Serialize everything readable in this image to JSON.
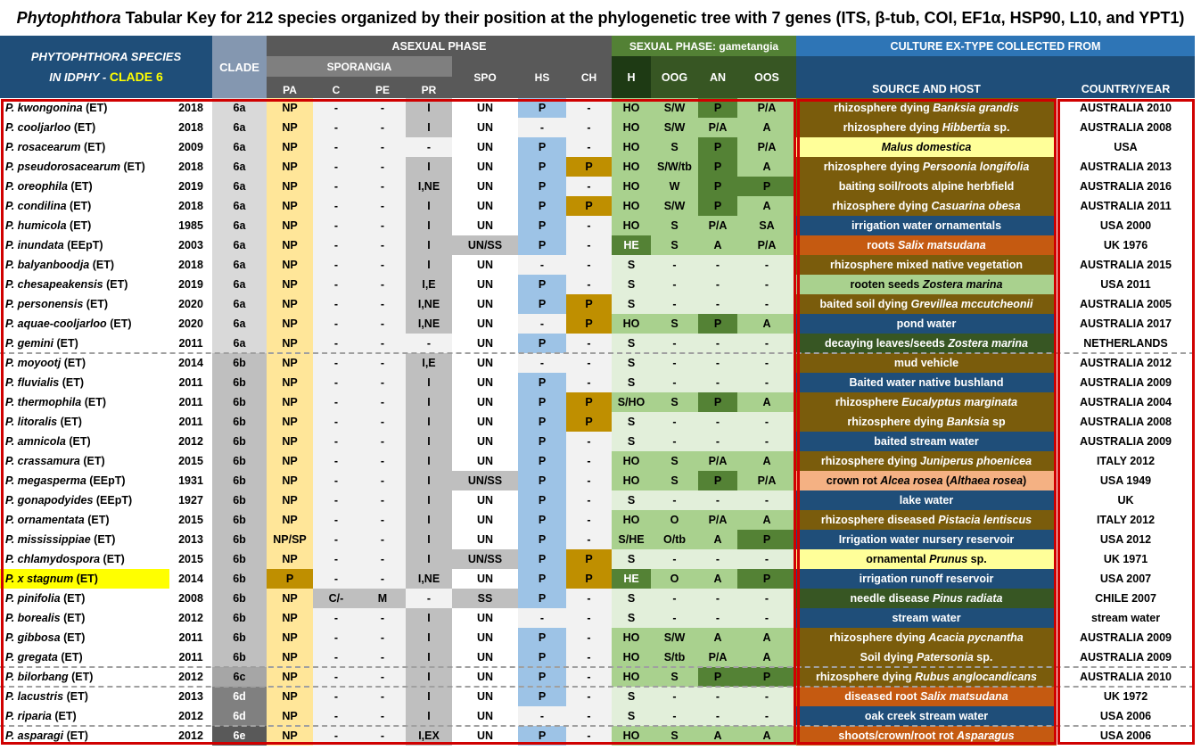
{
  "title": {
    "genus": "Phytophthora",
    "rest": " Tabular Key for 212 species organized by their position at the phylogenetic tree with 7 genes (ITS, β-tub, COI, EF1α, HSP90, L10, and YPT1)"
  },
  "header": {
    "species_line1": "PHYTOPHTHORA SPECIES",
    "species_line2_prefix": "IN IDPHY - ",
    "species_line2_clade": "CLADE 6",
    "clade": "CLADE",
    "asexual": "ASEXUAL PHASE",
    "sporangia": "SPORANGIA",
    "sexual": "SEXUAL PHASE: gametangia",
    "culture": "CULTURE EX-TYPE COLLECTED FROM",
    "cols": {
      "pa": "PA",
      "c": "C",
      "pe": "PE",
      "pr": "PR",
      "spo": "SPO",
      "hs": "HS",
      "ch": "CH",
      "h": "H",
      "oog": "OOG",
      "an": "AN",
      "oos": "OOS",
      "source": "SOURCE AND HOST",
      "country": "COUNTRY/YEAR"
    }
  },
  "colors": {
    "ho_brown": "#7a5c0c",
    "blue_dark": "#1f4e79",
    "orange": "#c55a11",
    "green_dark": "#375623",
    "yellow_pale": "#ffff99",
    "salmon": "#f4b183",
    "green_light": "#a9d18e",
    "yellow_hl": "#ffff00",
    "red_frame": "#d00000"
  },
  "rows": [
    {
      "sp": "P. kwongonina",
      "t": "(ET)",
      "y": "2018",
      "cl": "6a",
      "pa": "NP",
      "c": "-",
      "pe": "-",
      "pr": "I",
      "spo": "UN",
      "hs": "P",
      "ch": "-",
      "h": "HO",
      "oog": "S/W",
      "an": "P",
      "oos": "P/A",
      "src": [
        "rhizosphere dying ",
        "Banksia grandis"
      ],
      "srcc": "brown",
      "co": "AUSTRALIA 2010"
    },
    {
      "sp": "P. cooljarloo",
      "t": "(ET)",
      "y": "2018",
      "cl": "6a",
      "pa": "NP",
      "c": "-",
      "pe": "-",
      "pr": "I",
      "spo": "UN",
      "hs": "-",
      "ch": "-",
      "h": "HO",
      "oog": "S/W",
      "an": "P/A",
      "oos": "A",
      "src": [
        "rhizosphere dying ",
        "Hibbertia",
        " sp."
      ],
      "srcc": "brown",
      "co": "AUSTRALIA 2008"
    },
    {
      "sp": "P. rosacearum",
      "t": "(ET)",
      "y": "2009",
      "cl": "6a",
      "pa": "NP",
      "c": "-",
      "pe": "-",
      "pr": "-",
      "spo": "UN",
      "hs": "P",
      "ch": "-",
      "h": "HO",
      "oog": "S",
      "an": "P",
      "oos": "P/A",
      "src": [
        "",
        "Malus domestica"
      ],
      "srcc": "yellow",
      "co": "USA"
    },
    {
      "sp": "P. pseudorosacearum",
      "t": "(ET)",
      "y": "2018",
      "cl": "6a",
      "pa": "NP",
      "c": "-",
      "pe": "-",
      "pr": "I",
      "spo": "UN",
      "hs": "P",
      "ch": "P",
      "h": "HO",
      "oog": "S/W/tb",
      "an": "P",
      "oos": "A",
      "src": [
        "rhizosphere dying ",
        "Persoonia longifolia"
      ],
      "srcc": "brown",
      "co": "AUSTRALIA 2013"
    },
    {
      "sp": "P. oreophila",
      "t": "(ET)",
      "y": "2019",
      "cl": "6a",
      "pa": "NP",
      "c": "-",
      "pe": "-",
      "pr": "I,NE",
      "spo": "UN",
      "hs": "P",
      "ch": "-",
      "h": "HO",
      "oog": "W",
      "an": "P",
      "oos": "P",
      "src": [
        "baiting soil/roots alpine herbfield"
      ],
      "srcc": "brown",
      "co": "AUSTRALIA 2016"
    },
    {
      "sp": "P. condilina",
      "t": "(ET)",
      "y": "2018",
      "cl": "6a",
      "pa": "NP",
      "c": "-",
      "pe": "-",
      "pr": "I",
      "spo": "UN",
      "hs": "P",
      "ch": "P",
      "h": "HO",
      "oog": "S/W",
      "an": "P",
      "oos": "A",
      "src": [
        "rhizosphere dying ",
        "Casuarina obesa"
      ],
      "srcc": "brown",
      "co": "AUSTRALIA 2011"
    },
    {
      "sp": "P. humicola",
      "t": "(ET)",
      "y": "1985",
      "cl": "6a",
      "pa": "NP",
      "c": "-",
      "pe": "-",
      "pr": "I",
      "spo": "UN",
      "hs": "P",
      "ch": "-",
      "h": "HO",
      "oog": "S",
      "an": "P/A",
      "oos": "SA",
      "src": [
        "irrigation water ornamentals"
      ],
      "srcc": "blue",
      "co": "USA 2000"
    },
    {
      "sp": "P. inundata",
      "t": "(EEpT)",
      "y": "2003",
      "cl": "6a",
      "pa": "NP",
      "c": "-",
      "pe": "-",
      "pr": "I",
      "spo": "UN/SS",
      "hs": "P",
      "ch": "-",
      "h": "HE",
      "oog": "S",
      "an": "A",
      "oos": "P/A",
      "src": [
        "roots ",
        "Salix matsudana"
      ],
      "srcc": "orange",
      "co": "UK 1976"
    },
    {
      "sp": "P. balyanboodja",
      "t": "(ET)",
      "y": "2018",
      "cl": "6a",
      "pa": "NP",
      "c": "-",
      "pe": "-",
      "pr": "I",
      "spo": "UN",
      "hs": "-",
      "ch": "-",
      "h": "S",
      "oog": "-",
      "an": "-",
      "oos": "-",
      "src": [
        "rhizosphere mixed native vegetation"
      ],
      "srcc": "brown",
      "co": "AUSTRALIA 2015"
    },
    {
      "sp": "P. chesapeakensis",
      "t": "(ET)",
      "y": "2019",
      "cl": "6a",
      "pa": "NP",
      "c": "-",
      "pe": "-",
      "pr": "I,E",
      "spo": "UN",
      "hs": "P",
      "ch": "-",
      "h": "S",
      "oog": "-",
      "an": "-",
      "oos": "-",
      "src": [
        "rooten seeds ",
        "Zostera marina"
      ],
      "srcc": "lgreen",
      "co": "USA 2011"
    },
    {
      "sp": "P. personensis",
      "t": "(ET)",
      "y": "2020",
      "cl": "6a",
      "pa": "NP",
      "c": "-",
      "pe": "-",
      "pr": "I,NE",
      "spo": "UN",
      "hs": "P",
      "ch": "P",
      "h": "S",
      "oog": "-",
      "an": "-",
      "oos": "-",
      "src": [
        "baited soil dying ",
        "Grevillea mccutcheonii"
      ],
      "srcc": "brown",
      "co": "AUSTRALIA 2005"
    },
    {
      "sp": "P. aquae-cooljarloo",
      "t": "(ET)",
      "y": "2020",
      "cl": "6a",
      "pa": "NP",
      "c": "-",
      "pe": "-",
      "pr": "I,NE",
      "spo": "UN",
      "hs": "-",
      "ch": "P",
      "h": "HO",
      "oog": "S",
      "an": "P",
      "oos": "A",
      "src": [
        "pond water"
      ],
      "srcc": "blue",
      "co": "AUSTRALIA 2017"
    },
    {
      "sp": "P. gemini",
      "t": "(ET)",
      "y": "2011",
      "cl": "6a",
      "pa": "NP",
      "c": "-",
      "pe": "-",
      "pr": "-",
      "spo": "UN",
      "hs": "P",
      "ch": "-",
      "h": "S",
      "oog": "-",
      "an": "-",
      "oos": "-",
      "src": [
        "decaying leaves/seeds ",
        "Zostera marina"
      ],
      "srcc": "dgreen",
      "co": "NETHERLANDS"
    },
    {
      "sp": "P. moyootj",
      "t": "(ET)",
      "y": "2014",
      "cl": "6b",
      "pa": "NP",
      "c": "-",
      "pe": "-",
      "pr": "I,E",
      "spo": "UN",
      "hs": "-",
      "ch": "-",
      "h": "S",
      "oog": "-",
      "an": "-",
      "oos": "-",
      "src": [
        "mud vehicle"
      ],
      "srcc": "brown",
      "co": "AUSTRALIA 2012"
    },
    {
      "sp": "P. fluvialis",
      "t": "(ET)",
      "y": "2011",
      "cl": "6b",
      "pa": "NP",
      "c": "-",
      "pe": "-",
      "pr": "I",
      "spo": "UN",
      "hs": "P",
      "ch": "-",
      "h": "S",
      "oog": "-",
      "an": "-",
      "oos": "-",
      "src": [
        "Baited  water native bushland"
      ],
      "srcc": "blue",
      "co": "AUSTRALIA 2009"
    },
    {
      "sp": "P. thermophila",
      "t": "(ET)",
      "y": "2011",
      "cl": "6b",
      "pa": "NP",
      "c": "-",
      "pe": "-",
      "pr": "I",
      "spo": "UN",
      "hs": "P",
      "ch": "P",
      "h": "S/HO",
      "oog": "S",
      "an": "P",
      "oos": "A",
      "src": [
        "rhizosphere ",
        "Eucalyptus marginata"
      ],
      "srcc": "brown",
      "co": "AUSTRALIA 2004"
    },
    {
      "sp": "P. litoralis",
      "t": "(ET)",
      "y": "2011",
      "cl": "6b",
      "pa": "NP",
      "c": "-",
      "pe": "-",
      "pr": "I",
      "spo": "UN",
      "hs": "P",
      "ch": "P",
      "h": "S",
      "oog": "-",
      "an": "-",
      "oos": "-",
      "src": [
        "rhizosphere dying ",
        "Banksia",
        " sp"
      ],
      "srcc": "brown",
      "co": "AUSTRALIA 2008"
    },
    {
      "sp": "P. amnicola",
      "t": "(ET)",
      "y": "2012",
      "cl": "6b",
      "pa": "NP",
      "c": "-",
      "pe": "-",
      "pr": "I",
      "spo": "UN",
      "hs": "P",
      "ch": "-",
      "h": "S",
      "oog": "-",
      "an": "-",
      "oos": "-",
      "src": [
        "baited stream water"
      ],
      "srcc": "blue",
      "co": "AUSTRALIA 2009"
    },
    {
      "sp": "P. crassamura",
      "t": "(ET)",
      "y": "2015",
      "cl": "6b",
      "pa": "NP",
      "c": "-",
      "pe": "-",
      "pr": "I",
      "spo": "UN",
      "hs": "P",
      "ch": "-",
      "h": "HO",
      "oog": "S",
      "an": "P/A",
      "oos": "A",
      "src": [
        "rhizosphere dying ",
        "Juniperus phoenicea"
      ],
      "srcc": "brown",
      "co": "ITALY 2012"
    },
    {
      "sp": "P. megasperma",
      "t": "(EEpT)",
      "y": "1931",
      "cl": "6b",
      "pa": "NP",
      "c": "-",
      "pe": "-",
      "pr": "I",
      "spo": "UN/SS",
      "hs": "P",
      "ch": "-",
      "h": "HO",
      "oog": "S",
      "an": "P",
      "oos": "P/A",
      "src": [
        "crown rot ",
        "Alcea rosea",
        "  (",
        "Althaea rosea",
        ")"
      ],
      "srcc": "salmon",
      "co": "USA 1949"
    },
    {
      "sp": "P. gonapodyides",
      "t": "(EEpT)",
      "y": "1927",
      "cl": "6b",
      "pa": "NP",
      "c": "-",
      "pe": "-",
      "pr": "I",
      "spo": "UN",
      "hs": "P",
      "ch": "-",
      "h": "S",
      "oog": "-",
      "an": "-",
      "oos": "-",
      "src": [
        "lake water"
      ],
      "srcc": "blue",
      "co": "UK"
    },
    {
      "sp": "P. ornamentata",
      "t": "(ET)",
      "y": "2015",
      "cl": "6b",
      "pa": "NP",
      "c": "-",
      "pe": "-",
      "pr": "I",
      "spo": "UN",
      "hs": "P",
      "ch": "-",
      "h": "HO",
      "oog": "O",
      "an": "P/A",
      "oos": "A",
      "src": [
        "rhizosphere diseased ",
        "Pistacia lentiscus"
      ],
      "srcc": "brown",
      "co": "ITALY 2012"
    },
    {
      "sp": "P. mississippiae",
      "t": "(ET)",
      "y": "2013",
      "cl": "6b",
      "pa": "NP/SP",
      "c": "-",
      "pe": "-",
      "pr": "I",
      "spo": "UN",
      "hs": "P",
      "ch": "-",
      "h": "S/HE",
      "oog": "O/tb",
      "an": "A",
      "oos": "P",
      "src": [
        "Irrigation water nursery reservoir"
      ],
      "srcc": "blue",
      "co": "USA 2012"
    },
    {
      "sp": "P. chlamydospora",
      "t": "(ET)",
      "y": "2015",
      "cl": "6b",
      "pa": "NP",
      "c": "-",
      "pe": "-",
      "pr": "I",
      "spo": "UN/SS",
      "hs": "P",
      "ch": "P",
      "h": "S",
      "oog": "-",
      "an": "-",
      "oos": "-",
      "src": [
        "ornamental ",
        "Prunus",
        " sp."
      ],
      "srcc": "yellow",
      "co": "UK 1971"
    },
    {
      "sp": "P. x stagnum",
      "t": "(ET)",
      "y": "2014",
      "cl": "6b",
      "pa": "P",
      "c": "-",
      "pe": "-",
      "pr": "I,NE",
      "spo": "UN",
      "hs": "P",
      "ch": "P",
      "h": "HE",
      "oog": "O",
      "an": "A",
      "oos": "P",
      "src": [
        "irrigation runoff reservoir"
      ],
      "srcc": "blue",
      "co": "USA 2007",
      "hl": true
    },
    {
      "sp": "P. pinifolia",
      "t": "(ET)",
      "y": "2008",
      "cl": "6b",
      "pa": "NP",
      "c": "C/-",
      "pe": "M",
      "pr": "-",
      "spo": "SS",
      "hs": "P",
      "ch": "-",
      "h": "S",
      "oog": "-",
      "an": "-",
      "oos": "-",
      "src": [
        "needle disease ",
        "Pinus radiata"
      ],
      "srcc": "dgreen",
      "co": "CHILE 2007"
    },
    {
      "sp": "P. borealis",
      "t": "(ET)",
      "y": "2012",
      "cl": "6b",
      "pa": "NP",
      "c": "-",
      "pe": "-",
      "pr": "I",
      "spo": "UN",
      "hs": "-",
      "ch": "-",
      "h": "S",
      "oog": "-",
      "an": "-",
      "oos": "-",
      "src": [
        "stream water"
      ],
      "srcc": "blue",
      "co": "stream water"
    },
    {
      "sp": "P. gibbosa",
      "t": "(ET)",
      "y": "2011",
      "cl": "6b",
      "pa": "NP",
      "c": "-",
      "pe": "-",
      "pr": "I",
      "spo": "UN",
      "hs": "P",
      "ch": "-",
      "h": "HO",
      "oog": "S/W",
      "an": "A",
      "oos": "A",
      "src": [
        "rhizosphere dying ",
        "Acacia pycnantha"
      ],
      "srcc": "brown",
      "co": "AUSTRALIA 2009"
    },
    {
      "sp": "P. gregata",
      "t": "(ET)",
      "y": "2011",
      "cl": "6b",
      "pa": "NP",
      "c": "-",
      "pe": "-",
      "pr": "I",
      "spo": "UN",
      "hs": "P",
      "ch": "-",
      "h": "HO",
      "oog": "S/tb",
      "an": "P/A",
      "oos": "A",
      "src": [
        "Soil dying ",
        "Patersonia",
        " sp."
      ],
      "srcc": "brown",
      "co": "AUSTRALIA 2009"
    },
    {
      "sp": "P. bilorbang",
      "t": "(ET)",
      "y": "2012",
      "cl": "6c",
      "pa": "NP",
      "c": "-",
      "pe": "-",
      "pr": "I",
      "spo": "UN",
      "hs": "P",
      "ch": "-",
      "h": "HO",
      "oog": "S",
      "an": "P",
      "oos": "P",
      "src": [
        "rhizosphere dying ",
        "Rubus anglocandicans"
      ],
      "srcc": "brown",
      "co": "AUSTRALIA 2010"
    },
    {
      "sp": "P. lacustris",
      "t": "(ET)",
      "y": "2013",
      "cl": "6d",
      "pa": "NP",
      "c": "-",
      "pe": "-",
      "pr": "I",
      "spo": "UN",
      "hs": "P",
      "ch": "-",
      "h": "S",
      "oog": "-",
      "an": "-",
      "oos": "-",
      "src": [
        "diseased root ",
        "Salix matsudana"
      ],
      "srcc": "orange",
      "co": "UK 1972"
    },
    {
      "sp": "P. riparia",
      "t": "(ET)",
      "y": "2012",
      "cl": "6d",
      "pa": "NP",
      "c": "-",
      "pe": "-",
      "pr": "I",
      "spo": "UN",
      "hs": "-",
      "ch": "-",
      "h": "S",
      "oog": "-",
      "an": "-",
      "oos": "-",
      "src": [
        "oak creek stream water"
      ],
      "srcc": "blue",
      "co": "USA 2006"
    },
    {
      "sp": "P. asparagi",
      "t": "(ET)",
      "y": "2012",
      "cl": "6e",
      "pa": "NP",
      "c": "-",
      "pe": "-",
      "pr": "I,EX",
      "spo": "UN",
      "hs": "P",
      "ch": "-",
      "h": "HO",
      "oog": "S",
      "an": "A",
      "oos": "A",
      "src": [
        "shoots/crown/root rot ",
        "Asparagus"
      ],
      "srcc": "orange",
      "co": "USA 2006"
    }
  ]
}
